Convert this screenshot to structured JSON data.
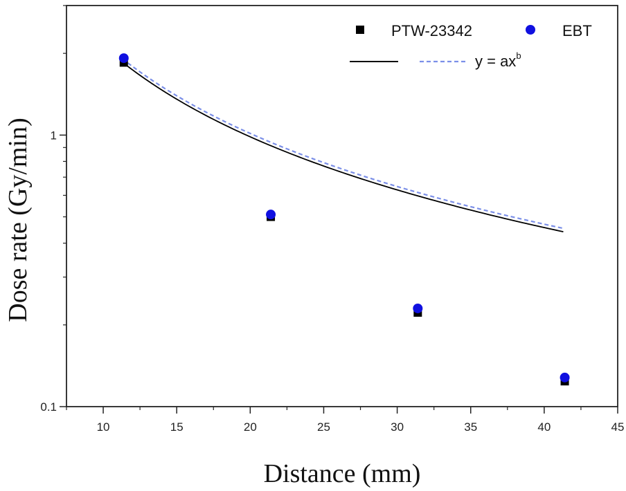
{
  "chart_data": {
    "type": "scatter",
    "xlabel": "Distance (mm)",
    "ylabel": "Dose rate (Gy/min)",
    "xlim": [
      7.5,
      45
    ],
    "ylim": [
      0.1,
      3.0
    ],
    "yscale": "log",
    "x_ticks": [
      10,
      15,
      20,
      25,
      30,
      35,
      40,
      45
    ],
    "y_ticks": [
      0.1,
      1
    ],
    "y_tick_labels": [
      "0.1",
      "1"
    ],
    "grid": false,
    "legend_position": "top-right",
    "series": [
      {
        "name": "PTW-23342",
        "marker": "square",
        "color": "#000000",
        "x": [
          11.4,
          21.4,
          31.4,
          41.4
        ],
        "y": [
          1.85,
          0.5,
          0.222,
          0.124
        ]
      },
      {
        "name": "EBT",
        "marker": "circle",
        "color": "#1010e0",
        "x": [
          11.4,
          21.4,
          31.4,
          41.4
        ],
        "y": [
          1.92,
          0.51,
          0.23,
          0.128
        ]
      }
    ],
    "fits": [
      {
        "model": "power",
        "a": 27.4,
        "b": -1.11,
        "style": "solid",
        "color": "#000000"
      },
      {
        "model": "power",
        "a": 28.2,
        "b": -1.11,
        "style": "dashed",
        "color": "#7b8fe8"
      }
    ],
    "legend": {
      "entries": [
        "PTW-23342",
        "EBT"
      ],
      "fit_label": "y = ax",
      "fit_label_sup": "b"
    }
  }
}
